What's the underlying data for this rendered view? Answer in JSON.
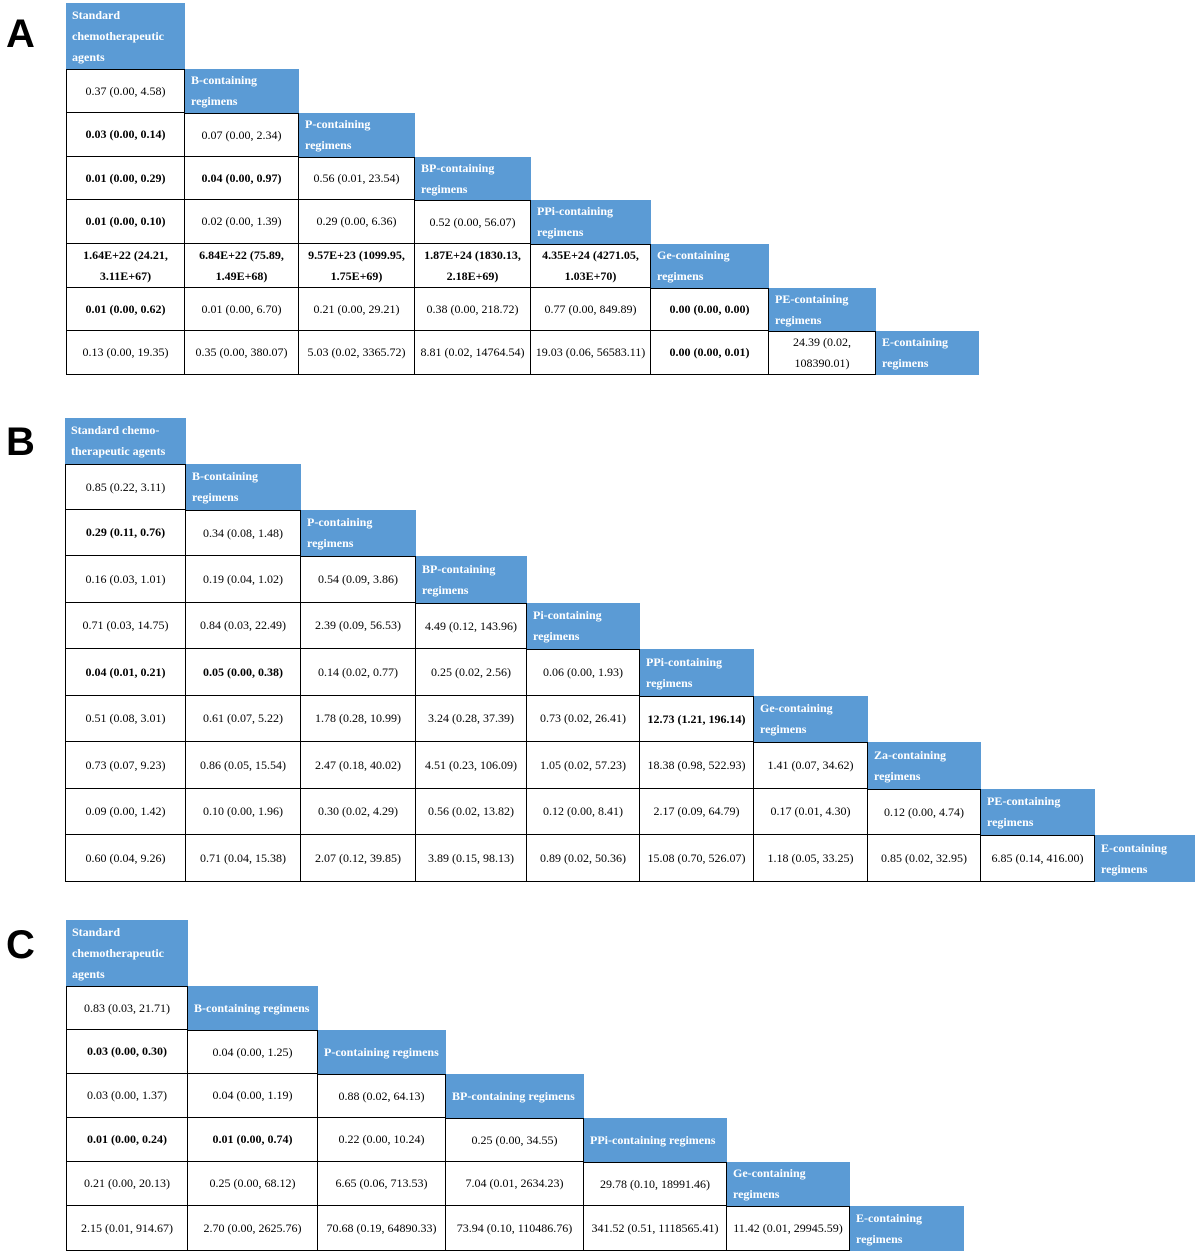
{
  "panels": [
    {
      "label": "A",
      "headers": [
        "Standard chemotherapeutic agents",
        "B-containing regimens",
        "P-containing regimens",
        "BP-containing regimens",
        "PPi-containing regimens",
        "Ge-containing regimens",
        "PE-containing regimens",
        "E-containing regimens"
      ],
      "cells": [
        [
          {
            "t": "0.37 (0.00, 4.58)",
            "b": false
          }
        ],
        [
          {
            "t": "0.03 (0.00, 0.14)",
            "b": true
          },
          {
            "t": "0.07 (0.00, 2.34)",
            "b": false
          }
        ],
        [
          {
            "t": "0.01 (0.00, 0.29)",
            "b": true
          },
          {
            "t": "0.04 (0.00, 0.97)",
            "b": true
          },
          {
            "t": "0.56 (0.01, 23.54)",
            "b": false
          }
        ],
        [
          {
            "t": "0.01 (0.00, 0.10)",
            "b": true
          },
          {
            "t": "0.02 (0.00, 1.39)",
            "b": false
          },
          {
            "t": "0.29 (0.00, 6.36)",
            "b": false
          },
          {
            "t": "0.52 (0.00, 56.07)",
            "b": false
          }
        ],
        [
          {
            "t": "1.64E+22 (24.21, 3.11E+67)",
            "b": true
          },
          {
            "t": "6.84E+22 (75.89, 1.49E+68)",
            "b": true
          },
          {
            "t": "9.57E+23 (1099.95, 1.75E+69)",
            "b": true
          },
          {
            "t": "1.87E+24 (1830.13, 2.18E+69)",
            "b": true
          },
          {
            "t": "4.35E+24 (4271.05, 1.03E+70)",
            "b": true
          }
        ],
        [
          {
            "t": "0.01 (0.00, 0.62)",
            "b": true
          },
          {
            "t": "0.01 (0.00, 6.70)",
            "b": false
          },
          {
            "t": "0.21 (0.00, 29.21)",
            "b": false
          },
          {
            "t": "0.38 (0.00, 218.72)",
            "b": false
          },
          {
            "t": "0.77 (0.00, 849.89)",
            "b": false
          },
          {
            "t": "0.00 (0.00, 0.00)",
            "b": true
          }
        ],
        [
          {
            "t": "0.13 (0.00, 19.35)",
            "b": false
          },
          {
            "t": "0.35 (0.00, 380.07)",
            "b": false
          },
          {
            "t": "5.03 (0.02, 3365.72)",
            "b": false
          },
          {
            "t": "8.81 (0.02, 14764.54)",
            "b": false
          },
          {
            "t": "19.03 (0.06, 56583.11)",
            "b": false
          },
          {
            "t": "0.00 (0.00, 0.01)",
            "b": true
          },
          {
            "t": "24.39 (0.02, 108390.01)",
            "b": false
          }
        ]
      ]
    },
    {
      "label": "B",
      "headers": [
        "Standard chemo-therapeutic agents",
        "B-containing regimens",
        "P-containing regimens",
        "BP-containing regimens",
        "Pi-containing regimens",
        "PPi-containing regimens",
        "Ge-containing regimens",
        "Za-containing regimens",
        "PE-containing regimens",
        "E-containing regimens"
      ],
      "cells": [
        [
          {
            "t": "0.85 (0.22, 3.11)",
            "b": false
          }
        ],
        [
          {
            "t": "0.29 (0.11, 0.76)",
            "b": true
          },
          {
            "t": "0.34 (0.08, 1.48)",
            "b": false
          }
        ],
        [
          {
            "t": "0.16 (0.03, 1.01)",
            "b": false
          },
          {
            "t": "0.19 (0.04, 1.02)",
            "b": false
          },
          {
            "t": "0.54 (0.09, 3.86)",
            "b": false
          }
        ],
        [
          {
            "t": "0.71 (0.03, 14.75)",
            "b": false
          },
          {
            "t": "0.84 (0.03, 22.49)",
            "b": false
          },
          {
            "t": "2.39 (0.09, 56.53)",
            "b": false
          },
          {
            "t": "4.49 (0.12, 143.96)",
            "b": false
          }
        ],
        [
          {
            "t": "0.04 (0.01, 0.21)",
            "b": true
          },
          {
            "t": "0.05 (0.00, 0.38)",
            "b": true
          },
          {
            "t": "0.14 (0.02, 0.77)",
            "b": false
          },
          {
            "t": "0.25 (0.02, 2.56)",
            "b": false
          },
          {
            "t": "0.06 (0.00, 1.93)",
            "b": false
          }
        ],
        [
          {
            "t": "0.51 (0.08, 3.01)",
            "b": false
          },
          {
            "t": "0.61 (0.07, 5.22)",
            "b": false
          },
          {
            "t": "1.78 (0.28, 10.99)",
            "b": false
          },
          {
            "t": "3.24 (0.28, 37.39)",
            "b": false
          },
          {
            "t": "0.73 (0.02, 26.41)",
            "b": false
          },
          {
            "t": "12.73 (1.21, 196.14)",
            "b": true
          }
        ],
        [
          {
            "t": "0.73 (0.07, 9.23)",
            "b": false
          },
          {
            "t": "0.86 (0.05, 15.54)",
            "b": false
          },
          {
            "t": "2.47 (0.18, 40.02)",
            "b": false
          },
          {
            "t": "4.51 (0.23, 106.09)",
            "b": false
          },
          {
            "t": "1.05 (0.02, 57.23)",
            "b": false
          },
          {
            "t": "18.38 (0.98, 522.93)",
            "b": false
          },
          {
            "t": "1.41 (0.07, 34.62)",
            "b": false
          }
        ],
        [
          {
            "t": "0.09 (0.00, 1.42)",
            "b": false
          },
          {
            "t": "0.10 (0.00, 1.96)",
            "b": false
          },
          {
            "t": "0.30 (0.02, 4.29)",
            "b": false
          },
          {
            "t": "0.56 (0.02, 13.82)",
            "b": false
          },
          {
            "t": "0.12 (0.00, 8.41)",
            "b": false
          },
          {
            "t": "2.17 (0.09, 64.79)",
            "b": false
          },
          {
            "t": "0.17 (0.01, 4.30)",
            "b": false
          },
          {
            "t": "0.12 (0.00, 4.74)",
            "b": false
          }
        ],
        [
          {
            "t": "0.60 (0.04, 9.26)",
            "b": false
          },
          {
            "t": "0.71 (0.04, 15.38)",
            "b": false
          },
          {
            "t": "2.07 (0.12, 39.85)",
            "b": false
          },
          {
            "t": "3.89 (0.15, 98.13)",
            "b": false
          },
          {
            "t": "0.89 (0.02, 50.36)",
            "b": false
          },
          {
            "t": "15.08 (0.70, 526.07)",
            "b": false
          },
          {
            "t": "1.18 (0.05, 33.25)",
            "b": false
          },
          {
            "t": "0.85 (0.02, 32.95)",
            "b": false
          },
          {
            "t": "6.85 (0.14, 416.00)",
            "b": false
          }
        ]
      ]
    },
    {
      "label": "C",
      "headers": [
        "Standard chemotherapeutic agents",
        "B-containing regimens",
        "P-containing regimens",
        "BP-containing regimens",
        "PPi-containing regimens",
        "Ge-containing regimens",
        "E-containing regimens"
      ],
      "cells": [
        [
          {
            "t": "0.83 (0.03, 21.71)",
            "b": false
          }
        ],
        [
          {
            "t": "0.03 (0.00, 0.30)",
            "b": true
          },
          {
            "t": "0.04 (0.00, 1.25)",
            "b": false
          }
        ],
        [
          {
            "t": "0.03 (0.00, 1.37)",
            "b": false
          },
          {
            "t": "0.04 (0.00, 1.19)",
            "b": false
          },
          {
            "t": "0.88 (0.02, 64.13)",
            "b": false
          }
        ],
        [
          {
            "t": "0.01 (0.00, 0.24)",
            "b": true
          },
          {
            "t": "0.01 (0.00, 0.74)",
            "b": true
          },
          {
            "t": "0.22 (0.00, 10.24)",
            "b": false
          },
          {
            "t": "0.25 (0.00, 34.55)",
            "b": false
          }
        ],
        [
          {
            "t": "0.21 (0.00, 20.13)",
            "b": false
          },
          {
            "t": "0.25 (0.00, 68.12)",
            "b": false
          },
          {
            "t": "6.65 (0.06, 713.53)",
            "b": false
          },
          {
            "t": "7.04 (0.01, 2634.23)",
            "b": false
          },
          {
            "t": "29.78 (0.10, 18991.46)",
            "b": false
          }
        ],
        [
          {
            "t": "2.15 (0.01, 914.67)",
            "b": false
          },
          {
            "t": "2.70 (0.00, 2625.76)",
            "b": false
          },
          {
            "t": "70.68 (0.19, 64890.33)",
            "b": false
          },
          {
            "t": "73.94 (0.10, 110486.76)",
            "b": false
          },
          {
            "t": "341.52 (0.51, 1118565.41)",
            "b": false
          },
          {
            "t": "11.42 (0.01, 29945.59)",
            "b": false
          }
        ]
      ]
    }
  ]
}
